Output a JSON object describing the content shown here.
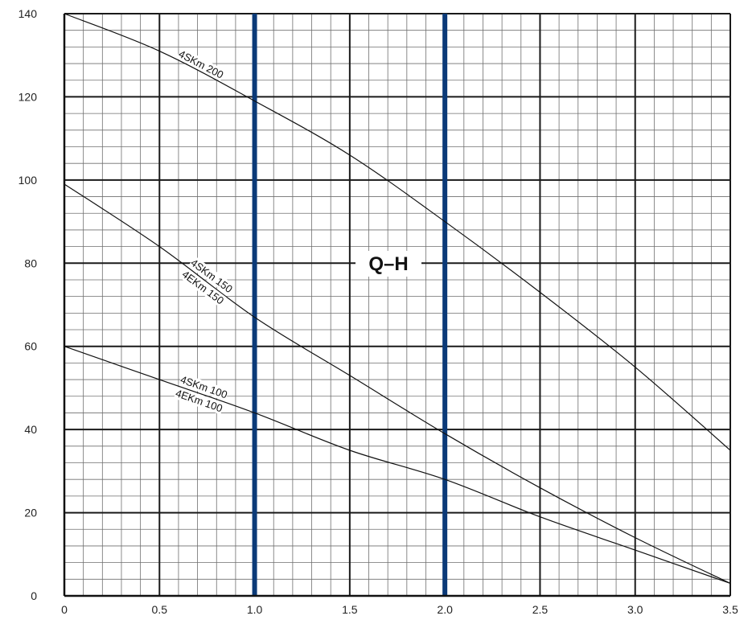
{
  "chart_data": {
    "type": "line",
    "title": "Q–H",
    "xlabel": "",
    "ylabel": "",
    "xlim": [
      0,
      3.5
    ],
    "ylim": [
      0,
      140
    ],
    "x_ticks": [
      "0",
      "0.5",
      "1.0",
      "1.5",
      "2.0",
      "2.5",
      "3.0",
      "3.5"
    ],
    "y_ticks": [
      "0",
      "20",
      "40",
      "60",
      "80",
      "100",
      "120",
      "140"
    ],
    "grid": true,
    "highlight_x": [
      1.0,
      2.0
    ],
    "highlight_color": "#0b3a78",
    "series": [
      {
        "labels": [
          "4SKm 200"
        ],
        "x": [
          0,
          0.5,
          1.0,
          1.5,
          2.0,
          2.5,
          3.0,
          3.5
        ],
        "values": [
          140,
          131,
          119,
          106,
          90,
          73,
          55,
          35
        ]
      },
      {
        "labels": [
          "4SKm 150",
          "4EKm 150"
        ],
        "x": [
          0,
          0.5,
          1.0,
          1.5,
          2.0,
          2.5,
          3.0,
          3.5
        ],
        "values": [
          99,
          84,
          67,
          53,
          39,
          26,
          14,
          3
        ]
      },
      {
        "labels": [
          "4SKm 100",
          "4EKm 100"
        ],
        "x": [
          0,
          0.5,
          1.0,
          1.5,
          2.0,
          2.5,
          3.0,
          3.5
        ],
        "values": [
          60,
          52,
          44,
          35,
          28,
          19,
          11,
          3
        ]
      }
    ]
  }
}
